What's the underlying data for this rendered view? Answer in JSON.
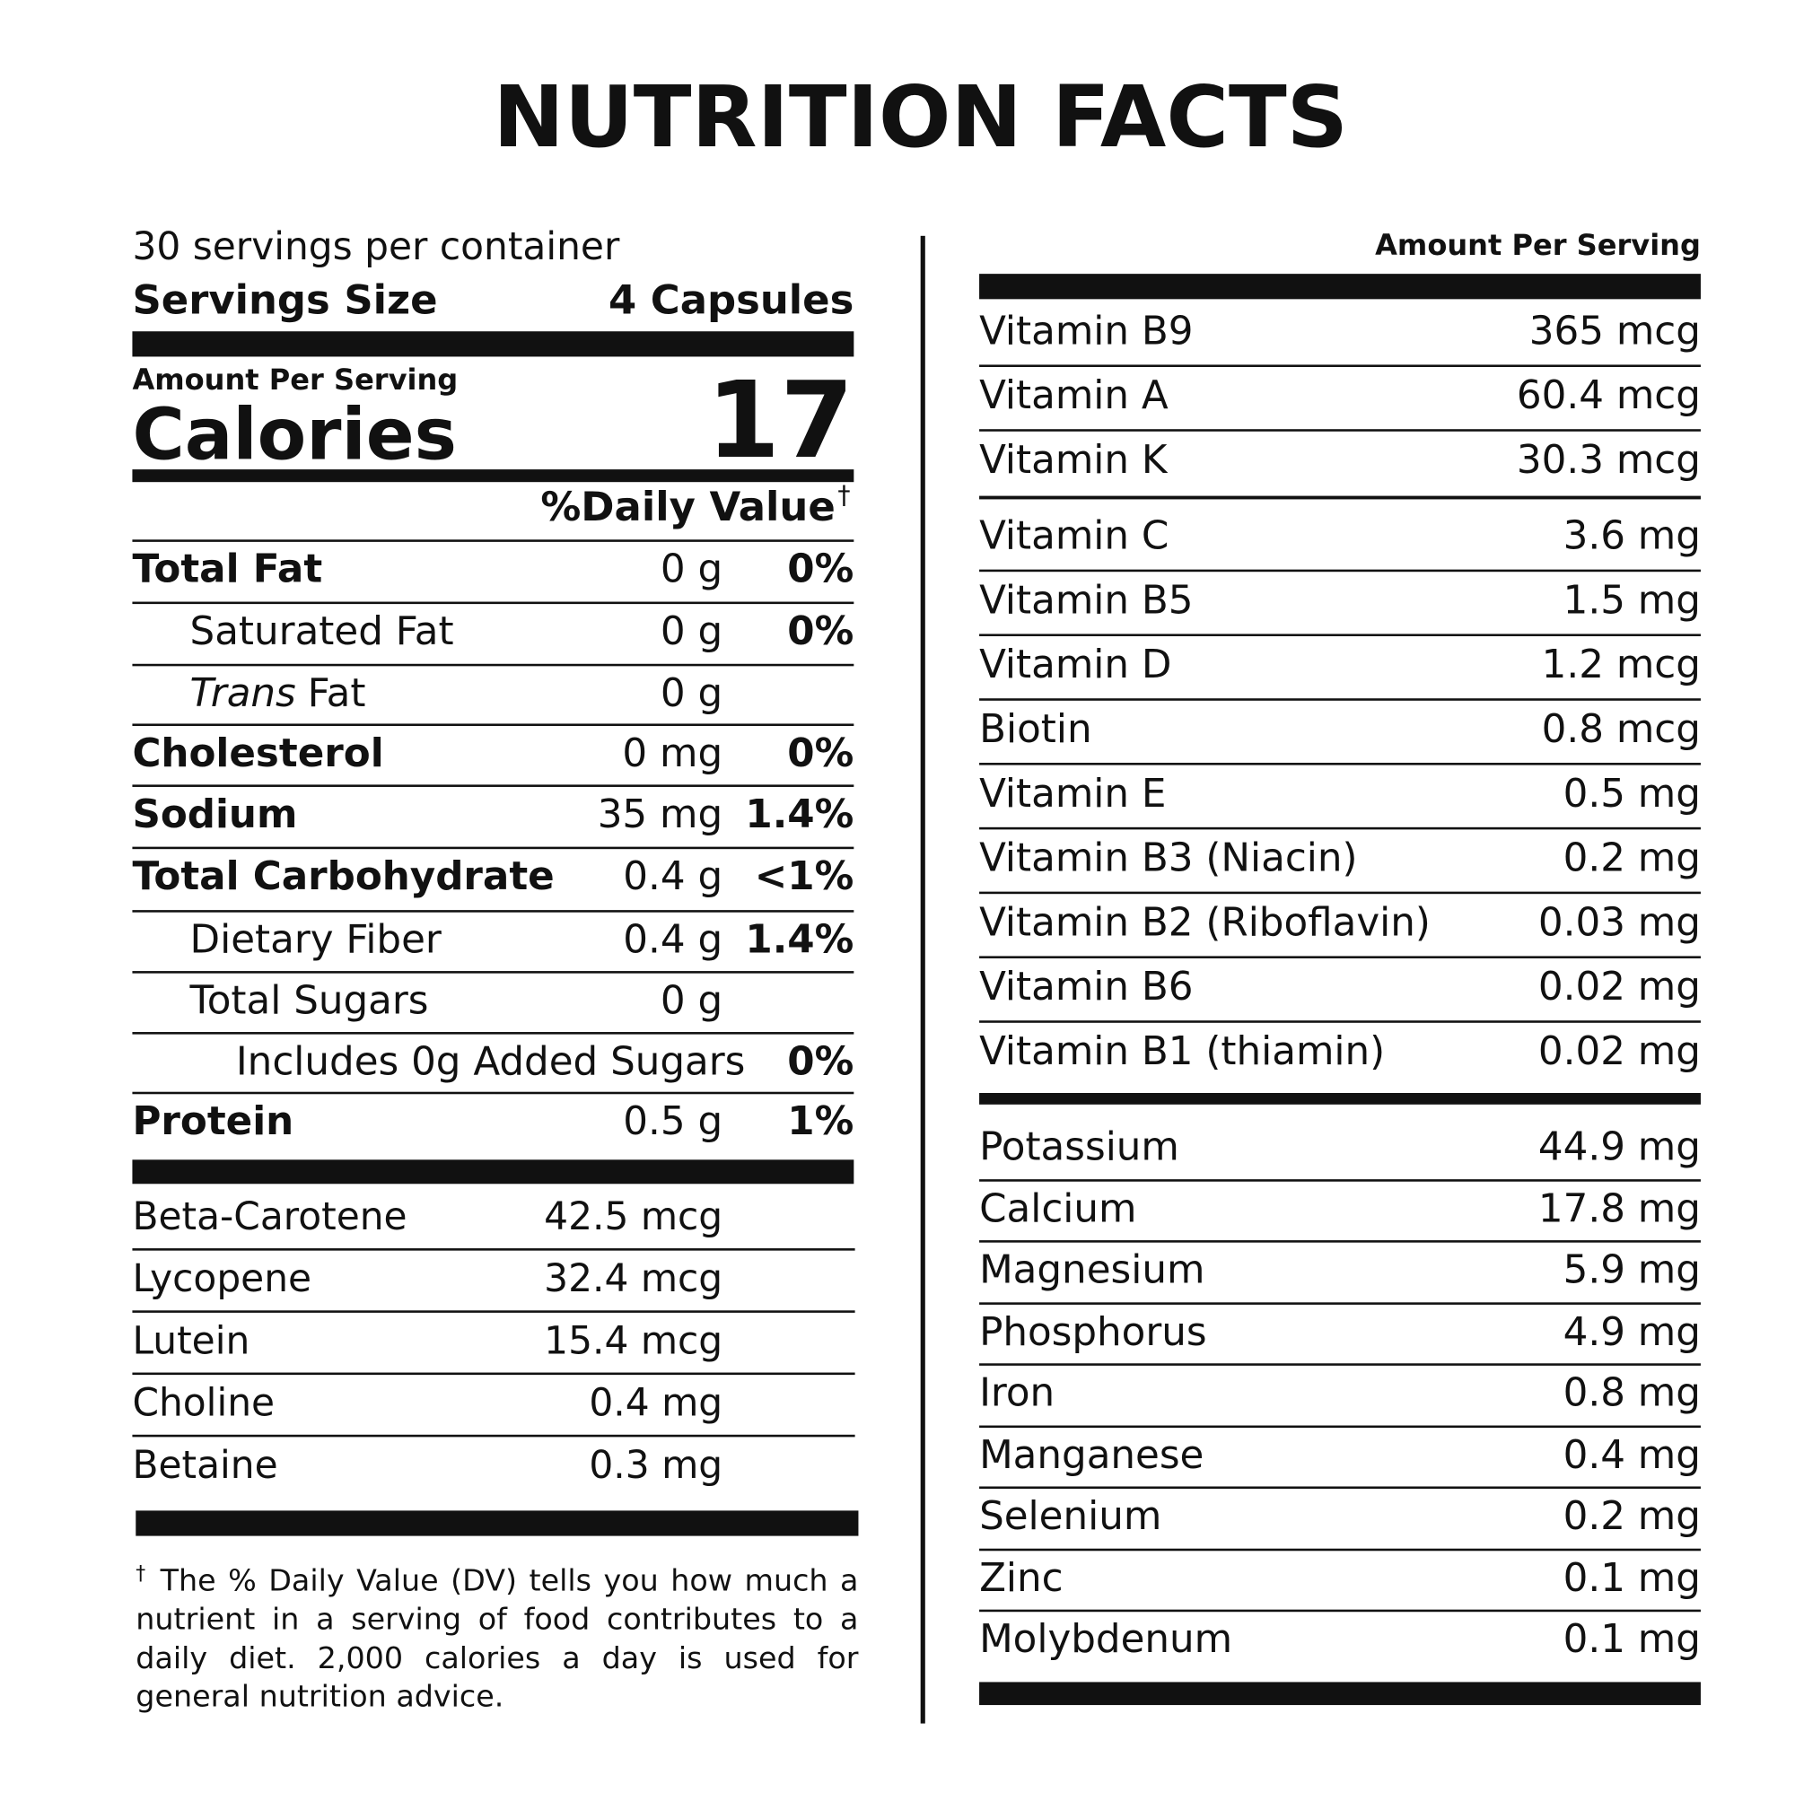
{
  "title": "NUTRITION FACTS",
  "servings_per_container": "30 servings per container",
  "serving_size": {
    "label": "Servings Size",
    "value": "4 Capsules"
  },
  "calories": {
    "header": "Amount Per Serving",
    "label": "Calories",
    "value": 17
  },
  "daily_value_header": {
    "text": "%Daily Value",
    "mark": "†"
  },
  "nutrients": [
    {
      "name": "Total Fat",
      "amount": "0 g",
      "daily_value": "0%",
      "sub": [
        {
          "name": "Saturated Fat",
          "amount": "0 g",
          "daily_value": "0%"
        },
        {
          "name_italic": "Trans",
          "name": "Fat",
          "amount": "0 g"
        }
      ]
    },
    {
      "name": "Cholesterol",
      "amount": "0 mg",
      "daily_value": "0%"
    },
    {
      "name": "Sodium",
      "amount": "35 mg",
      "daily_value": "1.4%"
    },
    {
      "name": "Total Carbohydrate",
      "amount": "0.4 g",
      "daily_value": "<1%",
      "sub": [
        {
          "name": "Dietary Fiber",
          "amount": "0.4 g",
          "daily_value": "1.4%"
        },
        {
          "name": "Total Sugars",
          "amount": "0 g",
          "sub": [
            {
              "name": "Includes 0g Added Sugars",
              "daily_value": "0%"
            }
          ]
        }
      ]
    },
    {
      "name": "Protein",
      "amount": "0.5 g",
      "daily_value": "1%"
    }
  ],
  "other_nutrients": [
    {
      "name": "Beta-Carotene",
      "amount": "42.5 mcg"
    },
    {
      "name": "Lycopene",
      "amount": "32.4 mcg"
    },
    {
      "name": "Lutein",
      "amount": "15.4 mcg"
    },
    {
      "name": "Choline",
      "amount": "0.4 mg"
    },
    {
      "name": "Betaine",
      "amount": "0.3 mg"
    }
  ],
  "footnote": {
    "mark": "†",
    "text": "The % Daily Value (DV) tells you how much a nutrient in a serving of food contributes to a daily diet. 2,000 calories a day is used for general nutrition advice."
  },
  "right_header": "Amount Per Serving",
  "vitamins": [
    {
      "name": "Vitamin B9",
      "amount": "365 mcg"
    },
    {
      "name": "Vitamin A",
      "amount": "60.4 mcg"
    },
    {
      "name": "Vitamin K",
      "amount": "30.3 mcg"
    },
    {
      "name": "Vitamin C",
      "amount": "3.6 mg"
    },
    {
      "name": "Vitamin B5",
      "amount": "1.5 mg"
    },
    {
      "name": "Vitamin D",
      "amount": "1.2 mcg"
    },
    {
      "name": "Biotin",
      "amount": "0.8 mcg"
    },
    {
      "name": "Vitamin E",
      "amount": "0.5 mg"
    },
    {
      "name": "Vitamin B3 (Niacin)",
      "amount": "0.2 mg"
    },
    {
      "name": "Vitamin B2 (Riboflavin)",
      "amount": "0.03 mg"
    },
    {
      "name": "Vitamin B6",
      "amount": "0.02 mg"
    },
    {
      "name": "Vitamin B1 (thiamin)",
      "amount": "0.02 mg"
    }
  ],
  "minerals": [
    {
      "name": "Potassium",
      "amount": "44.9 mg"
    },
    {
      "name": "Calcium",
      "amount": "17.8 mg"
    },
    {
      "name": "Magnesium",
      "amount": "5.9 mg"
    },
    {
      "name": "Phosphorus",
      "amount": "4.9 mg"
    },
    {
      "name": "Iron",
      "amount": "0.8 mg"
    },
    {
      "name": "Manganese",
      "amount": "0.4 mg"
    },
    {
      "name": "Selenium",
      "amount": "0.2 mg"
    },
    {
      "name": "Zinc",
      "amount": "0.1 mg"
    },
    {
      "name": "Molybdenum",
      "amount": "0.1 mg"
    }
  ]
}
